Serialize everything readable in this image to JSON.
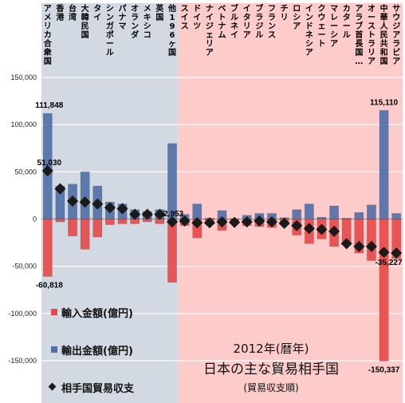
{
  "chart_data": {
    "type": "bar",
    "title": "2012年(暦年)",
    "subtitle": "日本の主な貿易相手国",
    "note": "(貿易収支順)",
    "ylim": [
      -150000,
      150000
    ],
    "yticks": [
      150000,
      100000,
      50000,
      0,
      -50000,
      -100000,
      -150000
    ],
    "ytick_labels": [
      "150,000",
      "100,000",
      "50,000",
      "0",
      "-50,000",
      "-100,000",
      "-150,000"
    ],
    "grid": true,
    "legend_position": "bottom-left",
    "categories": [
      "アメリカ合衆国",
      "香港",
      "台湾",
      "大韓民国",
      "タイ",
      "シンガポール",
      "パナマ",
      "オランダ",
      "メキシコ",
      "英国",
      "他196ヶ国",
      "スイス",
      "ドイツ",
      "ナイジェリア",
      "ベトナム",
      "ブルネイ",
      "イタリア",
      "ブラジル",
      "フランス",
      "チリ",
      "ロシア",
      "インドネシア",
      "クウェート",
      "マレーシア",
      "カタール",
      "アラブ首長国…",
      "オーストラリア",
      "中華人民共和国",
      "サウジアラビア"
    ],
    "series": [
      {
        "name": "輸出金額(億円)",
        "color": "#4f6fa8",
        "values": [
          111848,
          35000,
          37000,
          50000,
          35000,
          18000,
          16000,
          10000,
          8000,
          10000,
          80000,
          5000,
          16000,
          1000,
          9000,
          500,
          4000,
          6000,
          6000,
          1500,
          10000,
          16000,
          2000,
          14000,
          1000,
          7000,
          15000,
          115110,
          6000
        ]
      },
      {
        "name": "輸入金額(億円)",
        "color": "#e84848",
        "values": [
          -60818,
          -3000,
          -18000,
          -32000,
          -19000,
          -6000,
          -5000,
          -5000,
          -3000,
          -5000,
          -67000,
          -7000,
          -20000,
          -5000,
          -12000,
          -4000,
          -7000,
          -8000,
          -9000,
          -6000,
          -17000,
          -26000,
          -21000,
          -29000,
          -27000,
          -36000,
          -44000,
          -150337,
          -42000
        ]
      },
      {
        "name": "相手国貿易収支",
        "color": "#1a1a1a",
        "values": [
          51030,
          32000,
          19000,
          18000,
          16000,
          12000,
          11000,
          5000,
          5000,
          5000,
          -2953,
          -2000,
          -4000,
          -4000,
          -3000,
          -3500,
          -3000,
          -2000,
          -3000,
          -4500,
          -7000,
          -10000,
          -11000,
          -13000,
          -26000,
          -29000,
          -29000,
          -35227,
          -36000
        ]
      }
    ],
    "data_labels": [
      {
        "category_index": 0,
        "text": "111,848"
      },
      {
        "category_index": 0,
        "text": "51,030"
      },
      {
        "category_index": 0,
        "text": "-60,818"
      },
      {
        "category_index": 10,
        "text": "-2,953"
      },
      {
        "category_index": 27,
        "text": "115,110"
      },
      {
        "category_index": 27,
        "text": "-35,227"
      },
      {
        "category_index": 27,
        "text": "-150,337"
      }
    ],
    "regions": [
      {
        "name": "surplus",
        "color": "#d3d9e2",
        "from_index": 0,
        "to_index": 10
      },
      {
        "name": "deficit",
        "color": "#fecbcb",
        "from_index": 11,
        "to_index": 28
      }
    ]
  }
}
